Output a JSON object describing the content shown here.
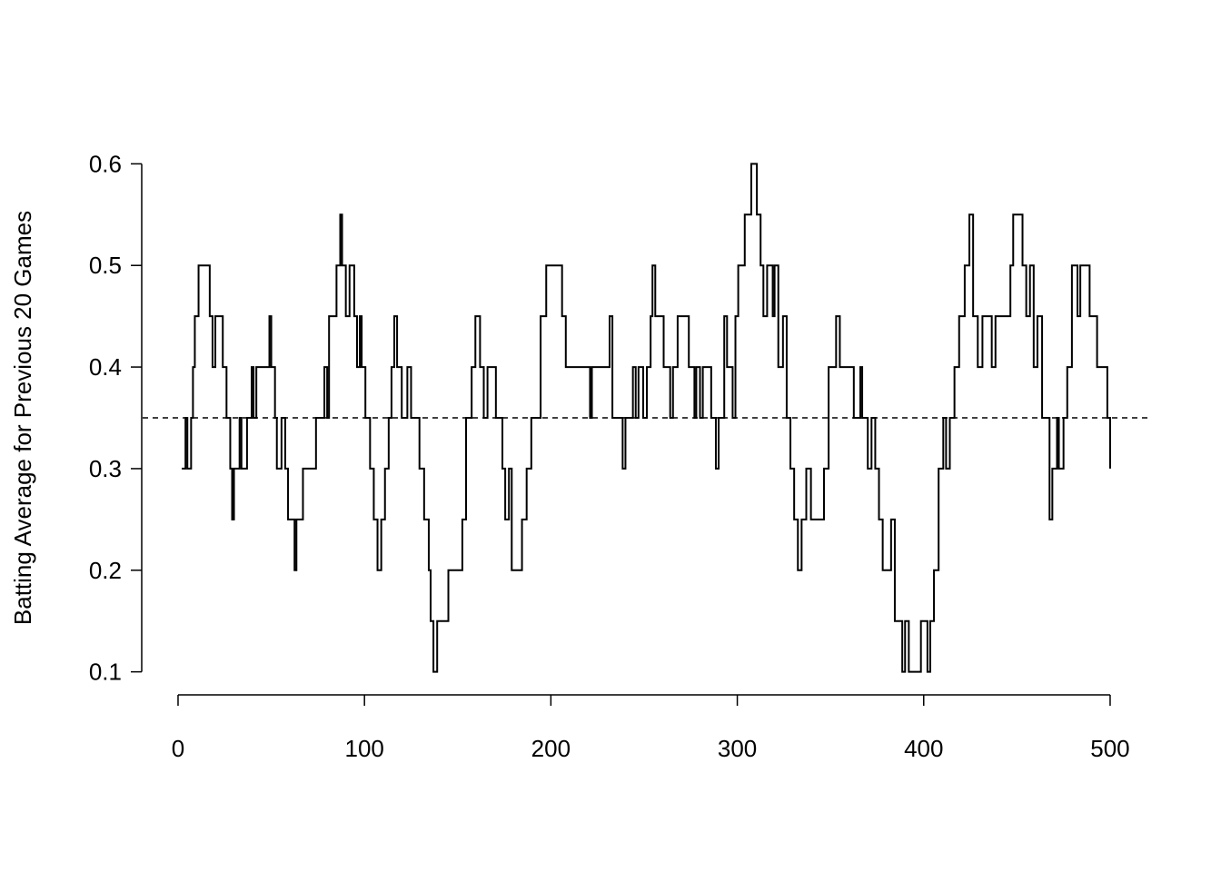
{
  "chart_data": {
    "type": "step",
    "y_label": "Batting Average for Previous 20 Games",
    "x": [
      2,
      4,
      5,
      7,
      8,
      9,
      11,
      17,
      18.5,
      20,
      24,
      26,
      28,
      29,
      30,
      33,
      34,
      37,
      39.5,
      40.5,
      42,
      49,
      50,
      52,
      53,
      55.5,
      57.5,
      59,
      62.5,
      63.5,
      67,
      74,
      78.5,
      80,
      81,
      85,
      87,
      88,
      90,
      92,
      94.5,
      96,
      97.5,
      98.5,
      100.5,
      103,
      105,
      107,
      109,
      111,
      113,
      114.5,
      116,
      117.5,
      120,
      123,
      125,
      129.5,
      132,
      134.5,
      135.5,
      137,
      139,
      145,
      152.5,
      154.5,
      157.5,
      159.5,
      162,
      164,
      166,
      170.5,
      174,
      175.5,
      177.5,
      179,
      184.5,
      187,
      189.5,
      194.5,
      197.5,
      206,
      208,
      221,
      222,
      231.5,
      233,
      238.5,
      240,
      244,
      245.5,
      247,
      249.5,
      251.5,
      253.5,
      254.5,
      256,
      260.5,
      264,
      265.5,
      268,
      274,
      277,
      278,
      280,
      281.5,
      286,
      288.5,
      290,
      293,
      294.5,
      297.5,
      299,
      300.5,
      304,
      307.5,
      310.5,
      312.5,
      314,
      316,
      319,
      320,
      322,
      324.5,
      326.5,
      328.5,
      330.5,
      332.5,
      334.5,
      337,
      339.5,
      346.5,
      349,
      353,
      355,
      362.5,
      366,
      367,
      370,
      372,
      374,
      376,
      378,
      382.5,
      384.5,
      388.5,
      390,
      392,
      398.5,
      402,
      403.5,
      405.5,
      408,
      410.5,
      412,
      414,
      416.5,
      419,
      422,
      424.5,
      426.5,
      429,
      431.5,
      436.5,
      438.5,
      446.5,
      448,
      453,
      455,
      457,
      459,
      461,
      463.5,
      467.5,
      469,
      471.5,
      472.5,
      475,
      477,
      479.5,
      482.5,
      484,
      489,
      493,
      498.5,
      500
    ],
    "values": [
      0.3,
      0.35,
      0.3,
      0.35,
      0.4,
      0.45,
      0.5,
      0.45,
      0.4,
      0.45,
      0.4,
      0.35,
      0.3,
      0.25,
      0.3,
      0.35,
      0.3,
      0.35,
      0.4,
      0.35,
      0.4,
      0.45,
      0.4,
      0.35,
      0.3,
      0.35,
      0.3,
      0.25,
      0.2,
      0.25,
      0.3,
      0.35,
      0.4,
      0.35,
      0.45,
      0.5,
      0.55,
      0.5,
      0.45,
      0.5,
      0.45,
      0.4,
      0.45,
      0.4,
      0.35,
      0.3,
      0.25,
      0.2,
      0.25,
      0.3,
      0.35,
      0.4,
      0.45,
      0.4,
      0.35,
      0.4,
      0.35,
      0.3,
      0.25,
      0.2,
      0.15,
      0.1,
      0.15,
      0.2,
      0.25,
      0.35,
      0.4,
      0.45,
      0.4,
      0.35,
      0.4,
      0.35,
      0.3,
      0.25,
      0.3,
      0.2,
      0.25,
      0.3,
      0.35,
      0.45,
      0.5,
      0.45,
      0.4,
      0.35,
      0.4,
      0.45,
      0.35,
      0.3,
      0.35,
      0.4,
      0.35,
      0.4,
      0.35,
      0.4,
      0.45,
      0.5,
      0.45,
      0.4,
      0.35,
      0.4,
      0.45,
      0.4,
      0.35,
      0.4,
      0.35,
      0.4,
      0.35,
      0.3,
      0.35,
      0.45,
      0.4,
      0.35,
      0.45,
      0.5,
      0.55,
      0.6,
      0.55,
      0.5,
      0.45,
      0.5,
      0.45,
      0.5,
      0.4,
      0.45,
      0.35,
      0.3,
      0.25,
      0.2,
      0.25,
      0.3,
      0.25,
      0.3,
      0.4,
      0.45,
      0.4,
      0.35,
      0.4,
      0.35,
      0.3,
      0.35,
      0.3,
      0.25,
      0.2,
      0.25,
      0.15,
      0.1,
      0.15,
      0.1,
      0.15,
      0.1,
      0.15,
      0.2,
      0.3,
      0.35,
      0.3,
      0.35,
      0.4,
      0.45,
      0.5,
      0.55,
      0.45,
      0.4,
      0.45,
      0.4,
      0.45,
      0.5,
      0.55,
      0.5,
      0.45,
      0.5,
      0.4,
      0.45,
      0.35,
      0.25,
      0.3,
      0.35,
      0.3,
      0.35,
      0.4,
      0.5,
      0.45,
      0.5,
      0.45,
      0.4,
      0.35,
      0.3
    ],
    "color": "#000000",
    "hline": 0.35,
    "xlim": [
      -19,
      520
    ],
    "ylim": [
      0.08,
      0.62
    ],
    "xticks": [
      0,
      100,
      200,
      300,
      400,
      500
    ],
    "yticks": [
      0.1,
      0.2,
      0.3,
      0.4,
      0.5,
      0.6
    ]
  }
}
